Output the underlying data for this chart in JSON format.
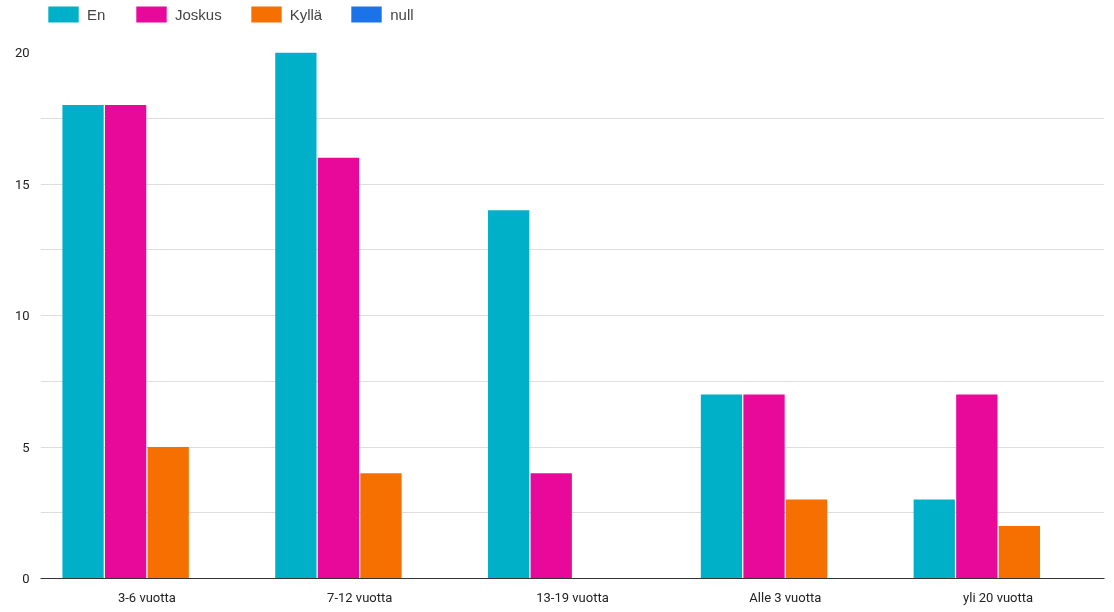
{
  "chart_data": {
    "type": "bar",
    "categories": [
      "3-6 vuotta",
      "7-12 vuotta",
      "13-19 vuotta",
      "Alle 3 vuotta",
      "yli 20 vuotta"
    ],
    "series": [
      {
        "name": "En",
        "color": "#00b0c8",
        "values": [
          18,
          20,
          14,
          7,
          3
        ]
      },
      {
        "name": "Joskus",
        "color": "#e8089a",
        "values": [
          18,
          16,
          4,
          7,
          7
        ]
      },
      {
        "name": "Kyllä",
        "color": "#f57000",
        "values": [
          5,
          4,
          null,
          3,
          2
        ]
      },
      {
        "name": "null",
        "color": "#1a73e8",
        "values": [
          null,
          null,
          null,
          null,
          null
        ]
      }
    ],
    "ylim": [
      0,
      20
    ],
    "yticks": [
      0,
      {
        "value": 2.5,
        "label": null
      },
      5,
      {
        "value": 7.5,
        "label": null
      },
      10,
      {
        "value": 12.5,
        "label": null
      },
      15,
      {
        "value": 17.5,
        "label": null
      },
      20
    ],
    "grid": "y",
    "legend": "top left"
  }
}
